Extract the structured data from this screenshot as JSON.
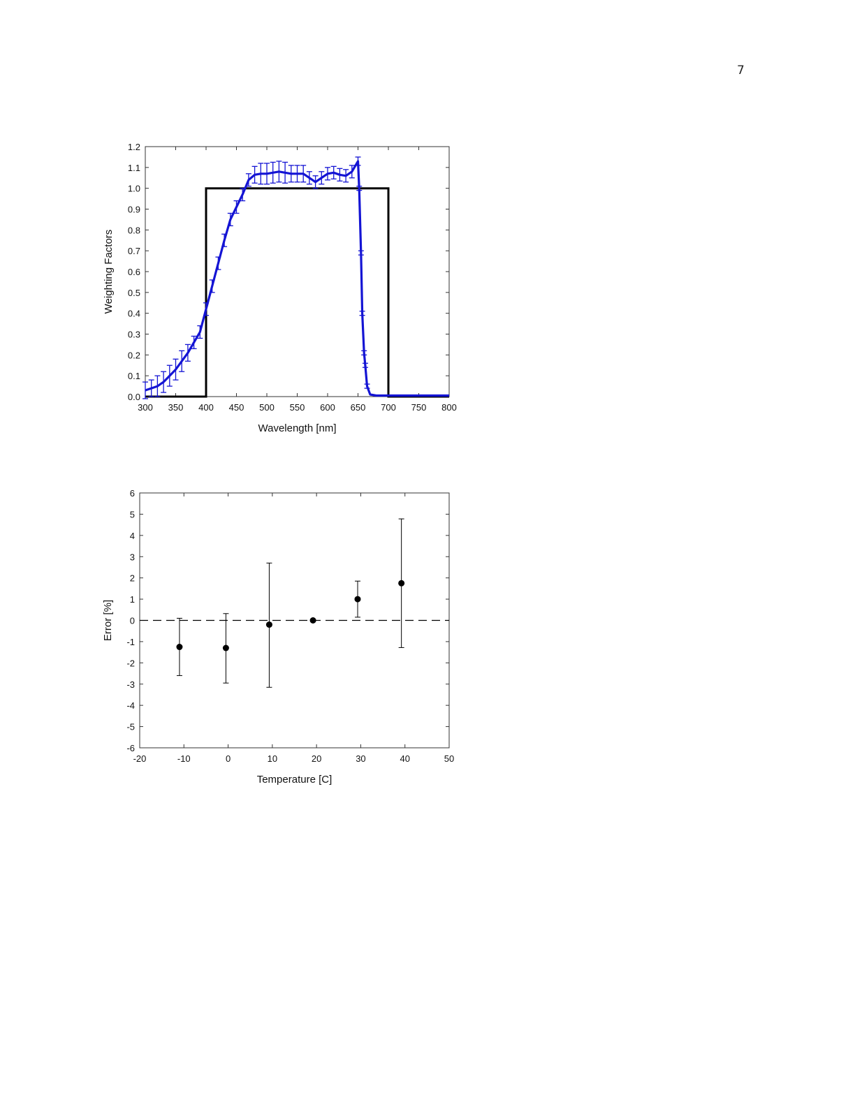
{
  "page": {
    "number": "7"
  },
  "chart_data": [
    {
      "type": "line",
      "title": "",
      "xlabel": "Wavelength [nm]",
      "ylabel": "Weighting Factors",
      "xlim": [
        300,
        800
      ],
      "ylim": [
        0.0,
        1.2
      ],
      "xticks": [
        300,
        350,
        400,
        450,
        500,
        550,
        600,
        650,
        700,
        750,
        800
      ],
      "yticks": [
        "0.0",
        "0.1",
        "0.2",
        "0.3",
        "0.4",
        "0.5",
        "0.6",
        "0.7",
        "0.8",
        "0.9",
        "1.0",
        "1.1",
        "1.2"
      ],
      "grid": false,
      "legend": "none",
      "series": [
        {
          "color": "#000000",
          "style": "step",
          "x": [
            300,
            400,
            400,
            700,
            700,
            800
          ],
          "y": [
            0.0,
            0.0,
            1.0,
            1.0,
            0.0,
            0.0
          ]
        },
        {
          "color": "#1414d4",
          "style": "line-with-errorbars",
          "x": [
            300,
            310,
            320,
            330,
            340,
            350,
            360,
            370,
            380,
            390,
            400,
            410,
            420,
            430,
            440,
            450,
            460,
            470,
            480,
            490,
            500,
            510,
            520,
            530,
            540,
            550,
            560,
            570,
            580,
            590,
            600,
            610,
            620,
            630,
            640,
            650,
            652,
            655,
            657,
            660,
            662,
            665,
            670,
            680,
            700,
            750,
            800
          ],
          "y": [
            0.03,
            0.04,
            0.05,
            0.07,
            0.1,
            0.13,
            0.17,
            0.21,
            0.26,
            0.31,
            0.42,
            0.53,
            0.64,
            0.75,
            0.85,
            0.91,
            0.97,
            1.04,
            1.065,
            1.07,
            1.07,
            1.075,
            1.08,
            1.075,
            1.07,
            1.07,
            1.07,
            1.05,
            1.03,
            1.05,
            1.07,
            1.075,
            1.065,
            1.06,
            1.08,
            1.13,
            1.0,
            0.69,
            0.4,
            0.21,
            0.15,
            0.05,
            0.01,
            0.005,
            0.005,
            0.005,
            0.005
          ],
          "error": [
            0.04,
            0.04,
            0.05,
            0.05,
            0.05,
            0.05,
            0.05,
            0.04,
            0.03,
            0.03,
            0.03,
            0.03,
            0.03,
            0.03,
            0.03,
            0.03,
            0.03,
            0.03,
            0.04,
            0.05,
            0.05,
            0.05,
            0.05,
            0.05,
            0.04,
            0.04,
            0.04,
            0.03,
            0.03,
            0.03,
            0.03,
            0.03,
            0.03,
            0.03,
            0.03,
            0.02,
            0.01,
            0.01,
            0.01,
            0.01,
            0.01,
            0.01,
            0.0,
            0.0,
            0.0,
            0.0,
            0.0
          ]
        }
      ]
    },
    {
      "type": "scatter",
      "title": "",
      "xlabel": "Temperature [C]",
      "ylabel": "Error [%]",
      "xlim": [
        -20,
        50
      ],
      "ylim": [
        -6,
        6
      ],
      "xticks": [
        -20,
        -10,
        0,
        10,
        20,
        30,
        40,
        50
      ],
      "yticks": [
        -6,
        -5,
        -4,
        -3,
        -2,
        -1,
        0,
        1,
        2,
        3,
        4,
        5,
        6
      ],
      "grid": false,
      "legend": "none",
      "reference_line": {
        "y": 0,
        "style": "dashed"
      },
      "series": [
        {
          "color": "#000000",
          "x": [
            -11,
            -0.5,
            9.3,
            19.2,
            29.3,
            39.2
          ],
          "y": [
            -1.25,
            -1.3,
            -0.2,
            0.0,
            1.0,
            1.75
          ],
          "yerr_low": [
            -2.6,
            -2.95,
            -3.15,
            0.0,
            0.15,
            -1.28
          ],
          "yerr_high": [
            0.1,
            0.32,
            2.7,
            0.0,
            1.85,
            4.78
          ]
        }
      ]
    }
  ]
}
